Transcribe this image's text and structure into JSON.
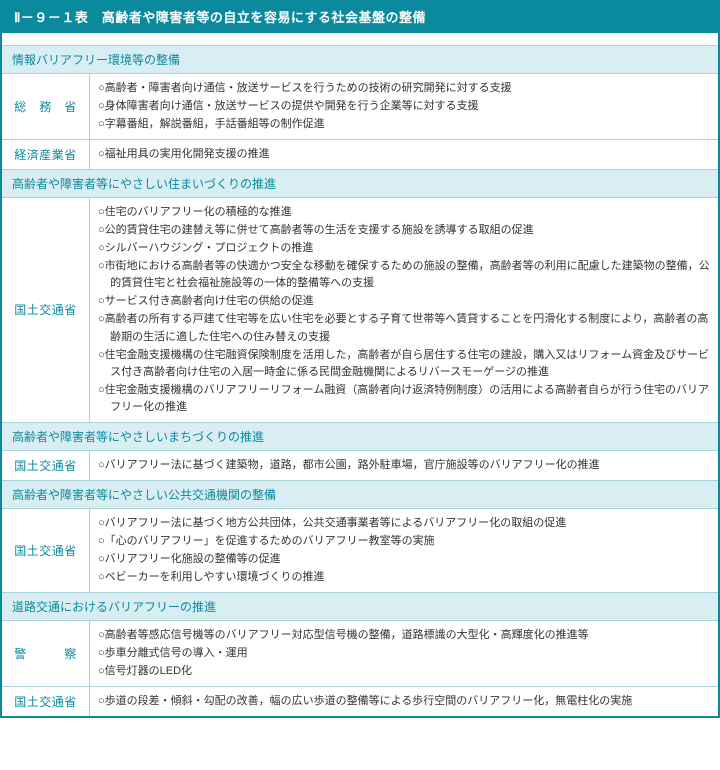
{
  "title": "Ⅱ－９－１表　高齢者や障害者等の自立を容易にする社会基盤の整備",
  "colors": {
    "header_bg": "#0b8a9e",
    "section_bg": "#d9eef2",
    "border": "#a9d2d9",
    "text": "#333333",
    "accent_text": "#0b8a9e"
  },
  "sections": [
    {
      "header": "情報バリアフリー環境等の整備",
      "rows": [
        {
          "agency": "総　務　省",
          "items": [
            "○高齢者・障害者向け通信・放送サービスを行うための技術の研究開発に対する支援",
            "○身体障害者向け通信・放送サービスの提供や開発を行う企業等に対する支援",
            "○字幕番組，解説番組，手話番組等の制作促進"
          ]
        },
        {
          "agency": "経済産業省",
          "items": [
            "○福祉用具の実用化開発支援の推進"
          ]
        }
      ]
    },
    {
      "header": "高齢者や障害者等にやさしい住まいづくりの推進",
      "rows": [
        {
          "agency": "国土交通省",
          "items": [
            "○住宅のバリアフリー化の積極的な推進",
            "○公的賃貸住宅の建替え等に併せて高齢者等の生活を支援する施設を誘導する取組の促進",
            "○シルバーハウジング・プロジェクトの推進",
            "○市街地における高齢者等の快適かつ安全な移動を確保するための施設の整備，高齢者等の利用に配慮した建築物の整備，公的賃貸住宅と社会福祉施設等の一体的整備等への支援",
            "○サービス付き高齢者向け住宅の供給の促進",
            "○高齢者の所有する戸建て住宅等を広い住宅を必要とする子育て世帯等へ賃貸することを円滑化する制度により，高齢者の高齢期の生活に適した住宅への住み替えの支援",
            "○住宅金融支援機構の住宅融資保険制度を活用した，高齢者が自ら居住する住宅の建設，購入又はリフォーム資金及びサービス付き高齢者向け住宅の入居一時金に係る民間金融機関によるリバースモーゲージの推進",
            "○住宅金融支援機構のバリアフリーリフォーム融資（高齢者向け返済特例制度）の活用による高齢者自らが行う住宅のバリアフリー化の推進"
          ]
        }
      ]
    },
    {
      "header": "高齢者や障害者等にやさしいまちづくりの推進",
      "rows": [
        {
          "agency": "国土交通省",
          "items": [
            "○バリアフリー法に基づく建築物，道路，都市公園，路外駐車場，官庁施設等のバリアフリー化の推進"
          ]
        }
      ]
    },
    {
      "header": "高齢者や障害者等にやさしい公共交通機関の整備",
      "rows": [
        {
          "agency": "国土交通省",
          "items": [
            "○バリアフリー法に基づく地方公共団体，公共交通事業者等によるバリアフリー化の取組の促進",
            "○「心のバリアフリー」を促進するためのバリアフリー教室等の実施",
            "○バリアフリー化施設の整備等の促進",
            "○ベビーカーを利用しやすい環境づくりの推進"
          ]
        }
      ]
    },
    {
      "header": "道路交通におけるバリアフリーの推進",
      "rows": [
        {
          "agency": "警　　　察",
          "items": [
            "○高齢者等感応信号機等のバリアフリー対応型信号機の整備，道路標識の大型化・高輝度化の推進等",
            "○歩車分離式信号の導入・運用",
            "○信号灯器のLED化"
          ]
        },
        {
          "agency": "国土交通省",
          "items": [
            "○歩道の段差・傾斜・勾配の改善，幅の広い歩道の整備等による歩行空間のバリアフリー化，無電柱化の実施"
          ]
        }
      ]
    }
  ]
}
